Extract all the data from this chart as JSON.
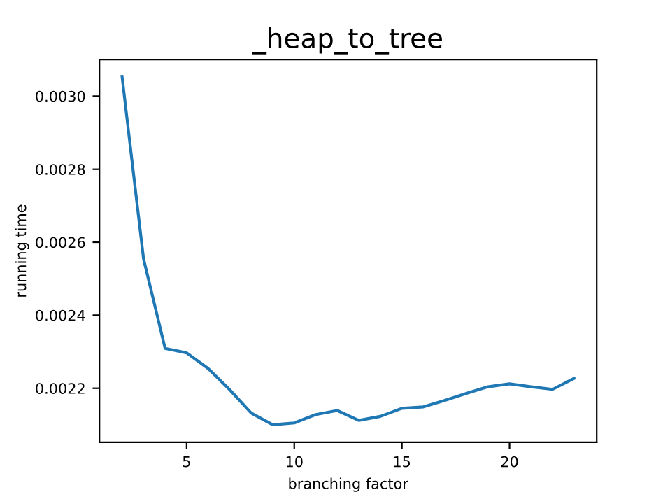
{
  "chart_data": {
    "type": "line",
    "title": "_heap_to_tree",
    "xlabel": "branching factor",
    "ylabel": "running time",
    "x": [
      2,
      3,
      4,
      5,
      6,
      7,
      8,
      9,
      10,
      11,
      12,
      13,
      14,
      15,
      16,
      17,
      18,
      19,
      20,
      21,
      22,
      23
    ],
    "series": [
      {
        "color": "#1f77b4",
        "values": [
          0.003054,
          0.002554,
          0.002309,
          0.002297,
          0.002254,
          0.002196,
          0.002132,
          0.0021,
          0.002105,
          0.002128,
          0.002139,
          0.002112,
          0.002123,
          0.002145,
          0.002149,
          0.002167,
          0.002186,
          0.002204,
          0.002212,
          0.002204,
          0.002197,
          0.002227
        ]
      }
    ],
    "xlim": [
      0.95,
      24.05
    ],
    "xticks": [
      5,
      10,
      15,
      20
    ],
    "ylim": [
      0.002052,
      0.0031
    ],
    "yticks": [
      {
        "value": 0.0022,
        "label": "0.0022"
      },
      {
        "value": 0.0024,
        "label": "0.0024"
      },
      {
        "value": 0.0026,
        "label": "0.0026"
      },
      {
        "value": 0.0028,
        "label": "0.0028"
      },
      {
        "value": 0.003,
        "label": "0.0030"
      }
    ],
    "grid": false,
    "legend": false
  }
}
